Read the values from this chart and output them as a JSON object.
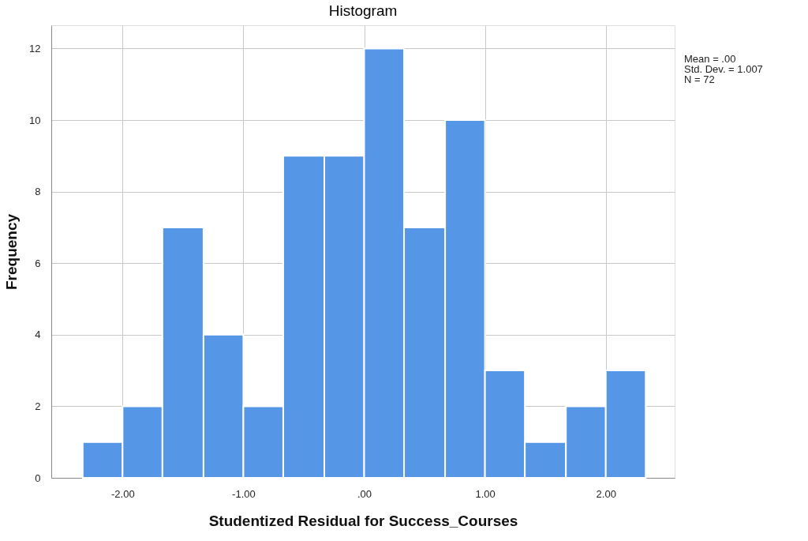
{
  "chart_data": {
    "type": "histogram",
    "title": "Histogram",
    "xlabel": "Studentized Residual for Success_Courses",
    "ylabel": "Frequency",
    "bins": [
      -2.33,
      -2.0,
      -1.67,
      -1.33,
      -1.0,
      -0.67,
      -0.33,
      0.0,
      0.33,
      0.67,
      1.0,
      1.33,
      1.67,
      2.0,
      2.33
    ],
    "values": [
      1,
      2,
      7,
      4,
      2,
      9,
      9,
      12,
      7,
      10,
      3,
      1,
      2,
      3
    ],
    "color": "#5596e6",
    "xlim": [
      -2.59,
      2.57
    ],
    "xticks": [
      {
        "value": -2,
        "label": "-2.00"
      },
      {
        "value": -1,
        "label": "-1.00"
      },
      {
        "value": 0,
        "label": ".00"
      },
      {
        "value": 1,
        "label": "1.00"
      },
      {
        "value": 2,
        "label": "2.00"
      }
    ],
    "ylim": [
      0,
      12.65
    ],
    "yticks": [
      0,
      2,
      4,
      6,
      8,
      10,
      12
    ],
    "grid": true,
    "annotations": [
      "Mean = .00",
      "Std. Dev. = 1.007",
      "N = 72"
    ]
  }
}
